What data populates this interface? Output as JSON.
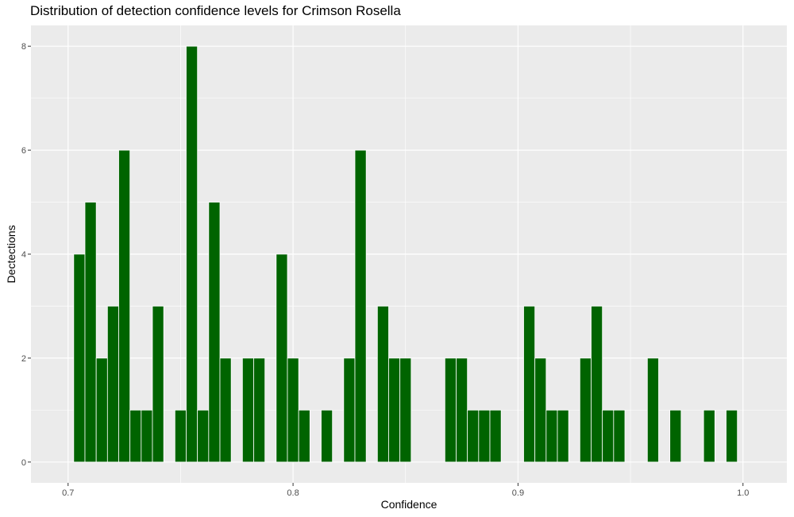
{
  "chart_data": {
    "type": "bar",
    "title": "Distribution of detection confidence levels for Crimson Rosella",
    "xlabel": "Confidence",
    "ylabel": "Dectections",
    "xlim": [
      0.6835,
      1.0195
    ],
    "ylim": [
      -0.4,
      8.4
    ],
    "x_ticks": [
      0.7,
      0.8,
      0.9,
      1.0
    ],
    "x_tick_labels": [
      "0.7",
      "0.8",
      "0.9",
      "1.0"
    ],
    "y_ticks": [
      0,
      2,
      4,
      6,
      8
    ],
    "y_tick_labels": [
      "0",
      "2",
      "4",
      "6",
      "8"
    ],
    "grid": true,
    "bin_width": 0.005,
    "bar_color": "#006400",
    "bar_outline": "#ffffff",
    "panel_background": "#ebebeb",
    "grid_color": "#ffffff",
    "x": [
      0.705,
      0.71,
      0.715,
      0.72,
      0.725,
      0.73,
      0.735,
      0.74,
      0.75,
      0.755,
      0.76,
      0.765,
      0.77,
      0.78,
      0.785,
      0.795,
      0.8,
      0.805,
      0.815,
      0.825,
      0.83,
      0.84,
      0.845,
      0.85,
      0.87,
      0.875,
      0.88,
      0.885,
      0.89,
      0.905,
      0.91,
      0.915,
      0.92,
      0.93,
      0.935,
      0.94,
      0.945,
      0.96,
      0.97,
      0.985,
      0.995
    ],
    "values": [
      4,
      5,
      2,
      3,
      6,
      1,
      1,
      3,
      1,
      8,
      1,
      5,
      2,
      2,
      2,
      4,
      2,
      1,
      1,
      2,
      6,
      3,
      2,
      2,
      2,
      2,
      1,
      1,
      1,
      3,
      2,
      1,
      1,
      2,
      3,
      1,
      1,
      2,
      1,
      1,
      1
    ]
  }
}
